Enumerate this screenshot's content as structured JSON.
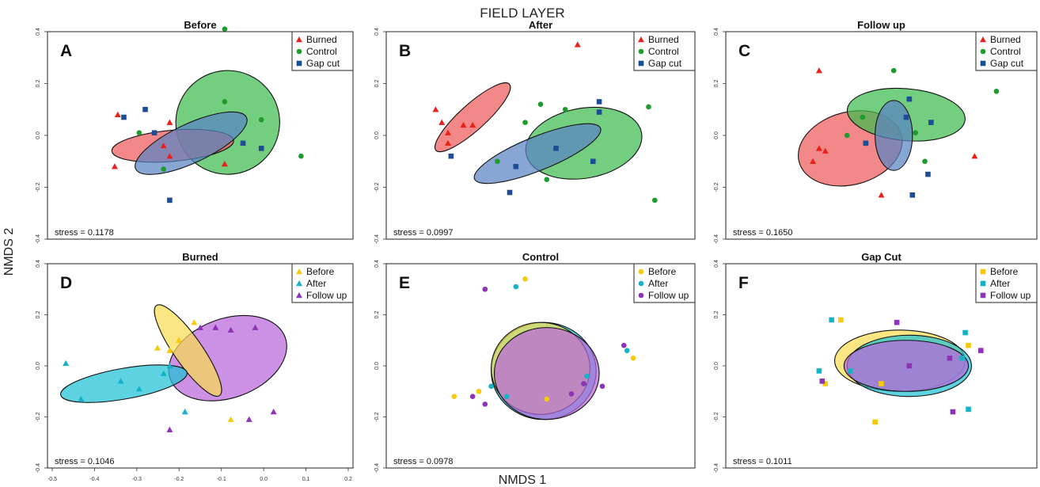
{
  "figure": {
    "title": "FIELD LAYER",
    "xlabel": "NMDS 1",
    "ylabel": "NMDS 2"
  },
  "colors": {
    "Burned": "#e8211d",
    "Control": "#1e9b2a",
    "Gap cut": "#1f4c97",
    "Before": "#f6c90b",
    "After": "#15b3c7",
    "Follow up": "#8e32b8"
  },
  "ellipse_fill": {
    "Burned": "#ee5a5a",
    "Control": "#3fbb4f",
    "Gap cut": "#5a83c4",
    "Before": "#f8dc52",
    "After": "#1ec2d6",
    "Follow up": "#b866d9"
  },
  "chart_data": [
    {
      "type": "scatter",
      "panel": "A",
      "title": "Before",
      "stress": "stress = 0.1178",
      "xlim": [
        -0.5,
        0.5
      ],
      "ylim": [
        -0.4,
        0.4
      ],
      "y_ticks": [
        "0.4",
        "0.2",
        "0.0",
        "-0.2",
        "-0.4"
      ],
      "marker": "mixed",
      "legend": [
        "Burned",
        "Control",
        "Gap cut"
      ],
      "series": [
        {
          "name": "Burned",
          "marker": "triangle",
          "points": [
            [
              -0.27,
              0.08
            ],
            [
              -0.28,
              -0.12
            ],
            [
              -0.1,
              0.05
            ],
            [
              -0.12,
              -0.04
            ],
            [
              -0.1,
              -0.08
            ],
            [
              0.08,
              -0.11
            ]
          ]
        },
        {
          "name": "Control",
          "marker": "circle",
          "points": [
            [
              0.08,
              0.41
            ],
            [
              0.08,
              0.13
            ],
            [
              0.2,
              0.06
            ],
            [
              0.33,
              -0.08
            ],
            [
              -0.12,
              -0.13
            ],
            [
              -0.2,
              0.01
            ]
          ]
        },
        {
          "name": "Gap cut",
          "marker": "square",
          "points": [
            [
              -0.25,
              0.07
            ],
            [
              -0.18,
              0.1
            ],
            [
              -0.15,
              0.01
            ],
            [
              -0.1,
              -0.25
            ],
            [
              0.14,
              -0.03
            ],
            [
              0.2,
              -0.05
            ]
          ]
        }
      ],
      "ellipses": [
        {
          "group": "Control",
          "cx": 0.09,
          "cy": 0.05,
          "rx": 0.17,
          "ry": 0.2,
          "angle": -20
        },
        {
          "group": "Burned",
          "cx": -0.09,
          "cy": -0.04,
          "rx": 0.2,
          "ry": 0.06,
          "angle": -5
        },
        {
          "group": "Gap cut",
          "cx": -0.03,
          "cy": -0.03,
          "rx": 0.2,
          "ry": 0.075,
          "angle": -25
        }
      ]
    },
    {
      "type": "scatter",
      "panel": "B",
      "title": "After",
      "stress": "stress = 0.0997",
      "xlim": [
        -0.5,
        0.5
      ],
      "ylim": [
        -0.4,
        0.4
      ],
      "y_ticks": [
        "0.4",
        "0.2",
        "0.0",
        "-0.2",
        "-0.4"
      ],
      "legend": [
        "Burned",
        "Control",
        "Gap cut"
      ],
      "series": [
        {
          "name": "Burned",
          "marker": "triangle",
          "points": [
            [
              0.12,
              0.35
            ],
            [
              -0.34,
              0.1
            ],
            [
              -0.32,
              0.05
            ],
            [
              -0.3,
              0.01
            ],
            [
              -0.25,
              0.04
            ],
            [
              -0.22,
              0.04
            ],
            [
              -0.3,
              -0.03
            ]
          ]
        },
        {
          "name": "Control",
          "marker": "circle",
          "points": [
            [
              0.0,
              0.12
            ],
            [
              -0.05,
              0.05
            ],
            [
              0.08,
              0.1
            ],
            [
              0.35,
              0.11
            ],
            [
              0.37,
              -0.25
            ],
            [
              -0.14,
              -0.1
            ],
            [
              0.02,
              -0.17
            ]
          ]
        },
        {
          "name": "Gap cut",
          "marker": "square",
          "points": [
            [
              -0.29,
              -0.08
            ],
            [
              0.19,
              0.13
            ],
            [
              0.19,
              0.09
            ],
            [
              0.17,
              -0.1
            ],
            [
              -0.1,
              -0.22
            ],
            [
              -0.08,
              -0.12
            ],
            [
              0.05,
              -0.05
            ]
          ]
        }
      ],
      "ellipses": [
        {
          "group": "Control",
          "cx": 0.14,
          "cy": -0.03,
          "rx": 0.19,
          "ry": 0.135,
          "angle": -10
        },
        {
          "group": "Burned",
          "cx": -0.22,
          "cy": 0.07,
          "rx": 0.16,
          "ry": 0.05,
          "angle": -42
        },
        {
          "group": "Gap cut",
          "cx": -0.01,
          "cy": -0.07,
          "rx": 0.22,
          "ry": 0.065,
          "angle": -22
        }
      ]
    },
    {
      "type": "scatter",
      "panel": "C",
      "title": "Follow up",
      "stress": "stress = 0.1650",
      "xlim": [
        -0.5,
        0.5
      ],
      "ylim": [
        -0.4,
        0.4
      ],
      "y_ticks": [
        "0.4",
        "0.2",
        "0.0",
        "-0.2",
        "-0.4"
      ],
      "legend": [
        "Burned",
        "Control",
        "Gap cut"
      ],
      "series": [
        {
          "name": "Burned",
          "marker": "triangle",
          "points": [
            [
              -0.2,
              0.25
            ],
            [
              -0.2,
              -0.05
            ],
            [
              -0.18,
              -0.06
            ],
            [
              -0.22,
              -0.1
            ],
            [
              0.0,
              -0.23
            ],
            [
              0.3,
              -0.08
            ]
          ]
        },
        {
          "name": "Control",
          "marker": "circle",
          "points": [
            [
              0.04,
              0.25
            ],
            [
              -0.06,
              0.07
            ],
            [
              -0.11,
              0.0
            ],
            [
              0.11,
              0.01
            ],
            [
              0.14,
              -0.1
            ],
            [
              0.37,
              0.17
            ]
          ]
        },
        {
          "name": "Gap cut",
          "marker": "square",
          "points": [
            [
              0.09,
              0.14
            ],
            [
              0.08,
              0.07
            ],
            [
              -0.05,
              -0.03
            ],
            [
              0.16,
              0.05
            ],
            [
              0.15,
              -0.15
            ],
            [
              0.1,
              -0.23
            ]
          ]
        }
      ],
      "ellipses": [
        {
          "group": "Burned",
          "cx": -0.1,
          "cy": -0.05,
          "rx": 0.17,
          "ry": 0.14,
          "angle": -15
        },
        {
          "group": "Control",
          "cx": 0.08,
          "cy": 0.08,
          "rx": 0.19,
          "ry": 0.1,
          "angle": 5
        },
        {
          "group": "Gap cut",
          "cx": 0.04,
          "cy": 0.0,
          "rx": 0.06,
          "ry": 0.135,
          "angle": 0
        }
      ]
    },
    {
      "type": "scatter",
      "panel": "D",
      "title": "Burned",
      "stress": "stress = 0.1046",
      "xlim": [
        -0.5,
        0.5
      ],
      "ylim": [
        -0.4,
        0.4
      ],
      "y_ticks": [
        "0.4",
        "0.2",
        "0.0",
        "-0.2",
        "-0.4"
      ],
      "x_ticks": [
        "-0.5",
        "-0.4",
        "-0.3",
        "-0.2",
        "-0.1",
        "0.0",
        "0.1",
        "0.2"
      ],
      "legend": [
        "Before",
        "After",
        "Follow up"
      ],
      "series": [
        {
          "name": "Before",
          "marker": "triangle",
          "points": [
            [
              -0.02,
              0.17
            ],
            [
              -0.07,
              0.1
            ],
            [
              -0.1,
              0.06
            ],
            [
              -0.14,
              0.07
            ],
            [
              0.1,
              -0.21
            ]
          ]
        },
        {
          "name": "After",
          "marker": "triangle",
          "points": [
            [
              -0.44,
              0.01
            ],
            [
              -0.39,
              -0.13
            ],
            [
              -0.26,
              -0.06
            ],
            [
              -0.2,
              -0.09
            ],
            [
              -0.12,
              -0.03
            ],
            [
              -0.1,
              0.0
            ],
            [
              -0.05,
              -0.18
            ]
          ]
        },
        {
          "name": "Follow up",
          "marker": "triangle",
          "points": [
            [
              0.05,
              0.15
            ],
            [
              0.1,
              0.14
            ],
            [
              0.18,
              0.15
            ],
            [
              0.24,
              -0.18
            ],
            [
              0.16,
              -0.21
            ],
            [
              -0.1,
              -0.25
            ],
            [
              0.0,
              0.15
            ]
          ]
        }
      ],
      "ellipses": [
        {
          "group": "Follow up",
          "cx": 0.09,
          "cy": 0.03,
          "rx": 0.2,
          "ry": 0.155,
          "angle": -20
        },
        {
          "group": "Before",
          "cx": -0.04,
          "cy": 0.06,
          "rx": 0.18,
          "ry": 0.055,
          "angle": 55
        },
        {
          "group": "After",
          "cx": -0.25,
          "cy": -0.07,
          "rx": 0.21,
          "ry": 0.06,
          "angle": -10
        }
      ]
    },
    {
      "type": "scatter",
      "panel": "E",
      "title": "Control",
      "stress": "stress = 0.0978",
      "xlim": [
        -0.5,
        0.5
      ],
      "ylim": [
        -0.4,
        0.4
      ],
      "y_ticks": [
        "0.4",
        "0.2",
        "0.0",
        "-0.2",
        "-0.4"
      ],
      "legend": [
        "Before",
        "After",
        "Follow up"
      ],
      "series": [
        {
          "name": "Before",
          "marker": "circle",
          "points": [
            [
              -0.05,
              0.34
            ],
            [
              -0.28,
              -0.12
            ],
            [
              0.02,
              -0.13
            ],
            [
              0.3,
              0.03
            ],
            [
              -0.2,
              -0.1
            ]
          ]
        },
        {
          "name": "After",
          "marker": "circle",
          "points": [
            [
              -0.08,
              0.31
            ],
            [
              0.28,
              0.06
            ],
            [
              -0.16,
              -0.08
            ],
            [
              -0.11,
              -0.12
            ],
            [
              0.15,
              -0.04
            ],
            [
              0.14,
              -0.07
            ]
          ]
        },
        {
          "name": "Follow up",
          "marker": "circle",
          "points": [
            [
              -0.18,
              0.3
            ],
            [
              0.27,
              0.08
            ],
            [
              -0.22,
              -0.12
            ],
            [
              -0.18,
              -0.15
            ],
            [
              0.1,
              -0.11
            ],
            [
              0.14,
              -0.07
            ],
            [
              0.2,
              -0.08
            ]
          ]
        }
      ],
      "ellipses": [
        {
          "group": "After",
          "cx": 0.01,
          "cy": -0.02,
          "rx": 0.17,
          "ry": 0.19,
          "angle": 0
        },
        {
          "group": "Before",
          "cx": 0.0,
          "cy": -0.01,
          "rx": 0.16,
          "ry": 0.18,
          "angle": 0
        },
        {
          "group": "Follow up",
          "cx": 0.02,
          "cy": -0.03,
          "rx": 0.17,
          "ry": 0.18,
          "angle": 0
        }
      ]
    },
    {
      "type": "scatter",
      "panel": "F",
      "title": "Gap Cut",
      "stress": "stress = 0.1011",
      "xlim": [
        -0.5,
        0.5
      ],
      "ylim": [
        -0.4,
        0.4
      ],
      "y_ticks": [
        "0.4",
        "0.2",
        "0.0",
        "-0.2",
        "-0.4"
      ],
      "legend": [
        "Before",
        "After",
        "Follow up"
      ],
      "series": [
        {
          "name": "Before",
          "marker": "square",
          "points": [
            [
              -0.13,
              0.18
            ],
            [
              -0.02,
              -0.22
            ],
            [
              -0.18,
              -0.07
            ],
            [
              0.28,
              0.08
            ],
            [
              0.0,
              -0.07
            ]
          ]
        },
        {
          "name": "After",
          "marker": "square",
          "points": [
            [
              -0.16,
              0.18
            ],
            [
              0.27,
              0.13
            ],
            [
              -0.1,
              -0.02
            ],
            [
              -0.2,
              -0.02
            ],
            [
              0.28,
              -0.17
            ],
            [
              0.26,
              0.03
            ]
          ]
        },
        {
          "name": "Follow up",
          "marker": "square",
          "points": [
            [
              0.05,
              0.17
            ],
            [
              -0.19,
              -0.06
            ],
            [
              0.22,
              0.03
            ],
            [
              0.32,
              0.06
            ],
            [
              0.23,
              -0.18
            ],
            [
              0.09,
              0.0
            ]
          ]
        }
      ],
      "ellipses": [
        {
          "group": "Before",
          "cx": 0.06,
          "cy": 0.02,
          "rx": 0.21,
          "ry": 0.12,
          "angle": 0
        },
        {
          "group": "After",
          "cx": 0.09,
          "cy": 0.0,
          "rx": 0.2,
          "ry": 0.12,
          "angle": 0
        },
        {
          "group": "Follow up",
          "cx": 0.08,
          "cy": 0.0,
          "rx": 0.2,
          "ry": 0.1,
          "angle": 0
        }
      ]
    }
  ]
}
